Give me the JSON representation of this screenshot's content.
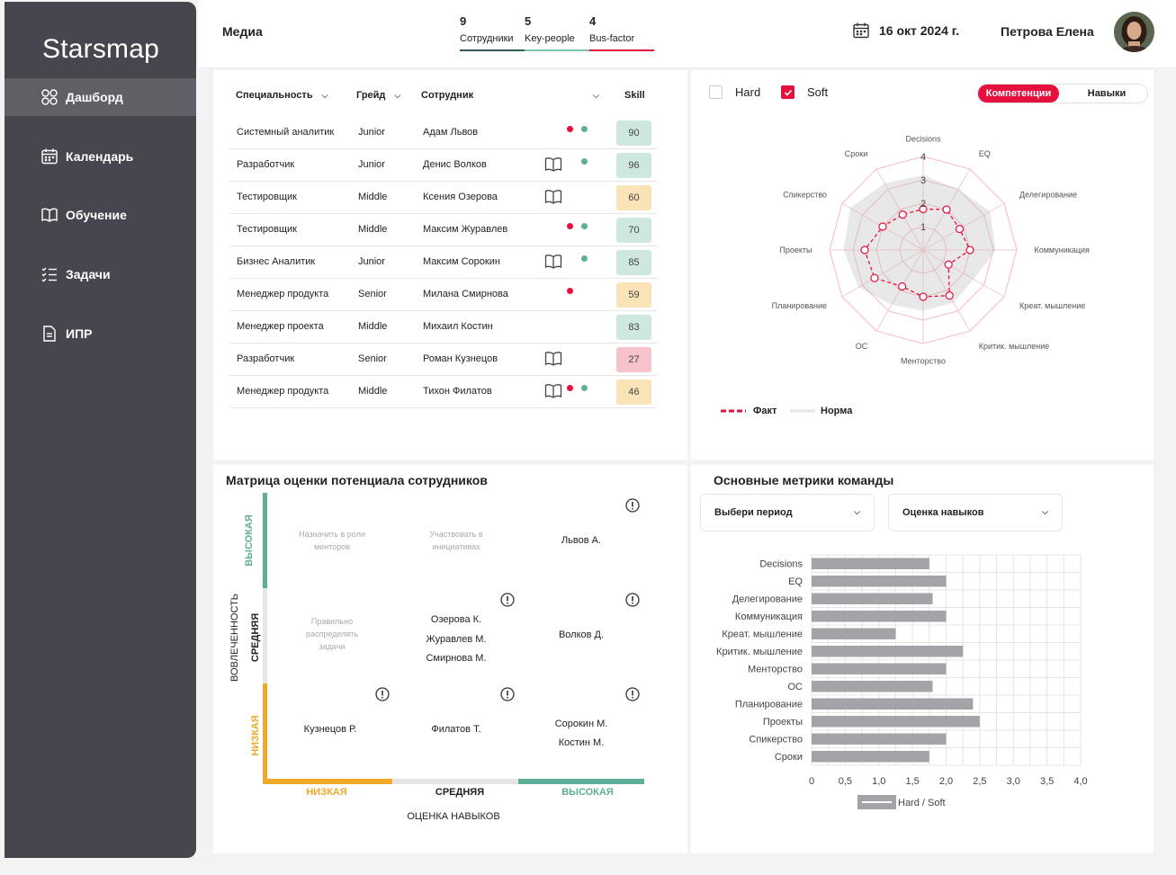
{
  "app": {
    "brand": "Starsmap"
  },
  "nav": [
    {
      "label": "Дашборд",
      "icon": "grid-icon",
      "active": true
    },
    {
      "label": "Календарь",
      "icon": "calendar-icon",
      "active": false
    },
    {
      "label": "Обучение",
      "icon": "book-icon",
      "active": false
    },
    {
      "label": "Задачи",
      "icon": "checklist-icon",
      "active": false
    },
    {
      "label": "ИПР",
      "icon": "document-icon",
      "active": false
    }
  ],
  "header": {
    "title": "Медиа",
    "stats": [
      {
        "num": "9",
        "label": "Сотрудники",
        "color": "#2e5e5a"
      },
      {
        "num": "5",
        "label": "Key-people",
        "color": "#7bc4b0"
      },
      {
        "num": "4",
        "label": "Bus-factor",
        "color": "#e5103e"
      }
    ],
    "date": "16 окт 2024 г.",
    "user": "Петрова Елена"
  },
  "table": {
    "headers": {
      "specialty": "Специальность",
      "grade": "Грейд",
      "employee": "Сотрудник",
      "skill": "Skill"
    },
    "rows": [
      {
        "specialty": "Системный аналитик",
        "grade": "Junior",
        "name": "Адам Львов",
        "book": false,
        "red": true,
        "green": true,
        "skill": "90",
        "color": "#cfe8de"
      },
      {
        "specialty": "Разработчик",
        "grade": "Junior",
        "name": "Денис Волков",
        "book": true,
        "red": false,
        "green": true,
        "skill": "96",
        "color": "#cfe8de"
      },
      {
        "specialty": "Тестировщик",
        "grade": "Middle",
        "name": "Ксения Озерова",
        "book": true,
        "red": false,
        "green": false,
        "skill": "60",
        "color": "#fbe3b8"
      },
      {
        "specialty": "Тестировщик",
        "grade": "Middle",
        "name": "Максим Журавлев",
        "book": false,
        "red": true,
        "green": true,
        "skill": "70",
        "color": "#cfe8de"
      },
      {
        "specialty": "Бизнес Аналитик",
        "grade": "Junior",
        "name": "Максим Сорокин",
        "book": true,
        "red": false,
        "green": true,
        "skill": "85",
        "color": "#cfe8de"
      },
      {
        "specialty": "Менеджер продукта",
        "grade": "Senior",
        "name": "Милана Смирнова",
        "book": false,
        "red": true,
        "green": false,
        "skill": "59",
        "color": "#fbe3b8"
      },
      {
        "specialty": "Менеджер проекта",
        "grade": "Middle",
        "name": "Михаил Костин",
        "book": false,
        "red": false,
        "green": false,
        "skill": "83",
        "color": "#cfe8de"
      },
      {
        "specialty": "Разработчик",
        "grade": "Senior",
        "name": "Роман Кузнецов",
        "book": true,
        "red": false,
        "green": false,
        "skill": "27",
        "color": "#f6c3cb"
      },
      {
        "specialty": "Менеджер продукта",
        "grade": "Middle",
        "name": "Тихон Филатов",
        "book": true,
        "red": true,
        "green": true,
        "skill": "46",
        "color": "#fbe3b8"
      }
    ]
  },
  "radar_controls": {
    "hard_label": "Hard",
    "soft_label": "Soft",
    "tab_competencies": "Компетенции",
    "tab_skills": "Навыки",
    "legend_fact": "Факт",
    "legend_norm": "Норма"
  },
  "radar_chart": {
    "type": "radar",
    "axes": [
      "Decisions",
      "EQ",
      "Делегирование",
      "Коммуникация",
      "Креат. мышление",
      "Критик. мышление",
      "Менторство",
      "ОС",
      "Планирование",
      "Проекты",
      "Спикерство",
      "Сроки"
    ],
    "rmax": 4,
    "ticks": [
      "1",
      "2",
      "3",
      "4"
    ],
    "fact": [
      1.75,
      2.0,
      1.8,
      2.0,
      1.25,
      2.25,
      2.0,
      1.8,
      2.4,
      2.5,
      2.0,
      1.75
    ],
    "norm": [
      3.2,
      3.0,
      3.3,
      3.1,
      2.5,
      2.6,
      2.6,
      2.7,
      3.2,
      3.4,
      3.6,
      3.3
    ],
    "colors": {
      "fact": "#e5103e",
      "norm": "#d8d8d8"
    }
  },
  "matrix": {
    "title": "Матрица оценки потенциала сотрудников",
    "y_title": "ВОВЛЕЧЕННОСТЬ",
    "x_title": "ОЦЕНКА НАВЫКОВ",
    "y_levels": [
      "ВЫСОКАЯ",
      "СРЕДНЯЯ",
      "НИЗКАЯ"
    ],
    "x_levels": [
      "НИЗКАЯ",
      "СРЕДНЯЯ",
      "ВЫСОКАЯ"
    ],
    "hints": {
      "mentors": "Назначить в роли менторов",
      "initiatives": "Участвовать в инициативах",
      "tasks": "Правильно распределять задачи"
    },
    "people": {
      "high_high": [
        "Львов А."
      ],
      "mid_mid": [
        "Озерова К.",
        "Журавлев М.",
        "Смирнова М."
      ],
      "mid_high": [
        "Волков Д."
      ],
      "low_low": [
        "Кузнецов Р."
      ],
      "low_mid": [
        "Филатов Т."
      ],
      "low_high": [
        "Сорокин М.",
        "Костин М."
      ]
    }
  },
  "metrics": {
    "title": "Основные метрики команды",
    "period_select": "Выбери период",
    "type_select": "Оценка навыков"
  },
  "chart_data": {
    "type": "bar",
    "orientation": "horizontal",
    "categories": [
      "Decisions",
      "EQ",
      "Делегирование",
      "Коммуникация",
      "Креат. мышление",
      "Критик. мышление",
      "Менторство",
      "ОС",
      "Планирование",
      "Проекты",
      "Спикерство",
      "Сроки"
    ],
    "series": [
      {
        "name": "Hard / Soft",
        "values": [
          1.75,
          2.0,
          1.8,
          2.0,
          1.25,
          2.25,
          2.0,
          1.8,
          2.4,
          2.5,
          2.0,
          1.75
        ]
      }
    ],
    "xlim": [
      0,
      4.0
    ],
    "xticks": [
      "0",
      "0,5",
      "1,0",
      "1,5",
      "2,0",
      "2,5",
      "3,0",
      "3,5",
      "4,0"
    ],
    "grid": true,
    "legend": "bottom",
    "bar_color": "#a3a3a8"
  }
}
